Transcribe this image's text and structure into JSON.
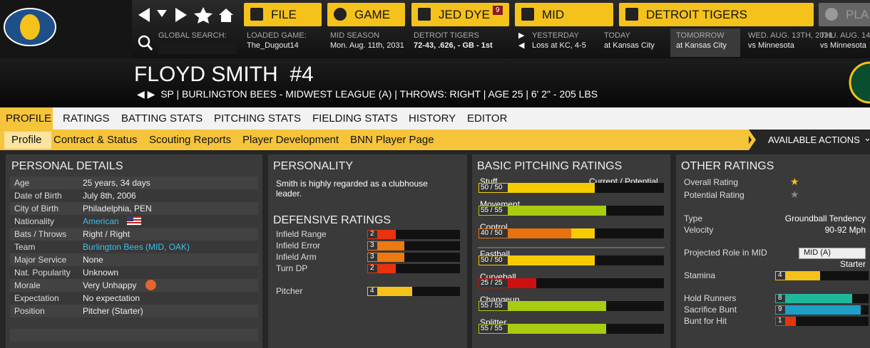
{
  "nav": {
    "buttons": [
      "FILE",
      "GAME",
      "JED DYE",
      "MID",
      "DETROIT TIGERS",
      "PLA"
    ],
    "badge": "9"
  },
  "info": {
    "search_label": "GLOBAL SEARCH:",
    "items": [
      {
        "label": "LOADED GAME:",
        "value": "The_Dugout14"
      },
      {
        "label": "MID SEASON",
        "value": "Mon. Aug. 11th, 2031"
      },
      {
        "label": "DETROIT TIGERS",
        "value": "72-43, .626, - GB - 1st"
      },
      {
        "label": "YESTERDAY",
        "value": "Loss at KC, 4-5"
      },
      {
        "label": "TODAY",
        "value": "at Kansas City"
      },
      {
        "label": "TOMORROW",
        "value": "at Kansas City"
      },
      {
        "label": "WED. AUG. 13TH, 2031",
        "value": "vs Minnesota"
      },
      {
        "label": "THU. AUG. 14",
        "value": "vs Minnesota"
      }
    ]
  },
  "player": {
    "name": "FLOYD SMITH",
    "number": "#4",
    "subtitle": "SP | BURLINGTON BEES - MIDWEST LEAGUE (A) | THROWS: RIGHT | AGE 25 | 6' 2\" - 205 LBS"
  },
  "tabs": [
    "PROFILE",
    "RATINGS",
    "BATTING STATS",
    "PITCHING STATS",
    "FIELDING STATS",
    "HISTORY",
    "EDITOR"
  ],
  "subtabs": [
    "Profile",
    "Contract & Status",
    "Scouting Reports",
    "Player Development",
    "BNN Player Page"
  ],
  "actions": "AVAILABLE ACTIONS",
  "personal_details": {
    "title": "PERSONAL DETAILS",
    "rows": [
      {
        "label": "Age",
        "value": "25 years, 34 days"
      },
      {
        "label": "Date of Birth",
        "value": "July 8th, 2006"
      },
      {
        "label": "City of Birth",
        "value": "Philadelphia, PEN"
      },
      {
        "label": "Nationality",
        "value": "American"
      },
      {
        "label": "Bats / Throws",
        "value": "Right / Right"
      },
      {
        "label": "Team",
        "value": "Burlington Bees (MID, OAK)"
      },
      {
        "label": "Major Service",
        "value": "None"
      },
      {
        "label": "Nat. Popularity",
        "value": "Unknown"
      },
      {
        "label": "Morale",
        "value": "Very Unhappy"
      },
      {
        "label": "Expectation",
        "value": "No expectation"
      },
      {
        "label": "Position",
        "value": "Pitcher (Starter)"
      }
    ]
  },
  "personality": {
    "title": "PERSONALITY",
    "text": "Smith is highly regarded as a clubhouse leader."
  },
  "defensive_ratings": {
    "title": "DEFENSIVE RATINGS",
    "rows": [
      {
        "label": "Infield Range",
        "value": 2
      },
      {
        "label": "Infield Error",
        "value": 3
      },
      {
        "label": "Infield Arm",
        "value": 3
      },
      {
        "label": "Turn DP",
        "value": 2
      }
    ],
    "pitcher": {
      "label": "Pitcher",
      "value": 4
    }
  },
  "pitching_ratings": {
    "title": "BASIC PITCHING RATINGS",
    "column_label": "Current / Potential",
    "ratings": [
      {
        "name": "Stuff",
        "label": "50 / 50",
        "current": 50,
        "potential": 50
      },
      {
        "name": "Movement",
        "label": "55 / 55",
        "current": 55,
        "potential": 55
      },
      {
        "name": "Control",
        "label": "40 / 50",
        "current": 40,
        "potential": 50
      }
    ],
    "pitches": [
      {
        "name": "Fastball",
        "label": "50 / 50",
        "current": 50,
        "potential": 50
      },
      {
        "name": "Curveball",
        "label": "25 / 25",
        "current": 25,
        "potential": 25
      },
      {
        "name": "Changeup",
        "label": "55 / 55",
        "current": 55,
        "potential": 55
      },
      {
        "name": "Splitter",
        "label": "55 / 55",
        "current": 55,
        "potential": 55
      }
    ]
  },
  "other_ratings": {
    "title": "OTHER RATINGS",
    "overall_label": "Overall Rating",
    "potential_label": "Potential Rating",
    "type_label": "Type",
    "type": "Groundball Tendency",
    "velocity_label": "Velocity",
    "velocity": "90-92 Mph",
    "role_label": "Projected Role in MID",
    "role_select": "MID (A)",
    "role": "Starter",
    "stamina": {
      "label": "Stamina",
      "value": 4
    },
    "bars": [
      {
        "label": "Hold Runners",
        "value": 8
      },
      {
        "label": "Sacrifice Bunt",
        "value": 9
      },
      {
        "label": "Bunt for Hit",
        "value": 1
      }
    ]
  }
}
